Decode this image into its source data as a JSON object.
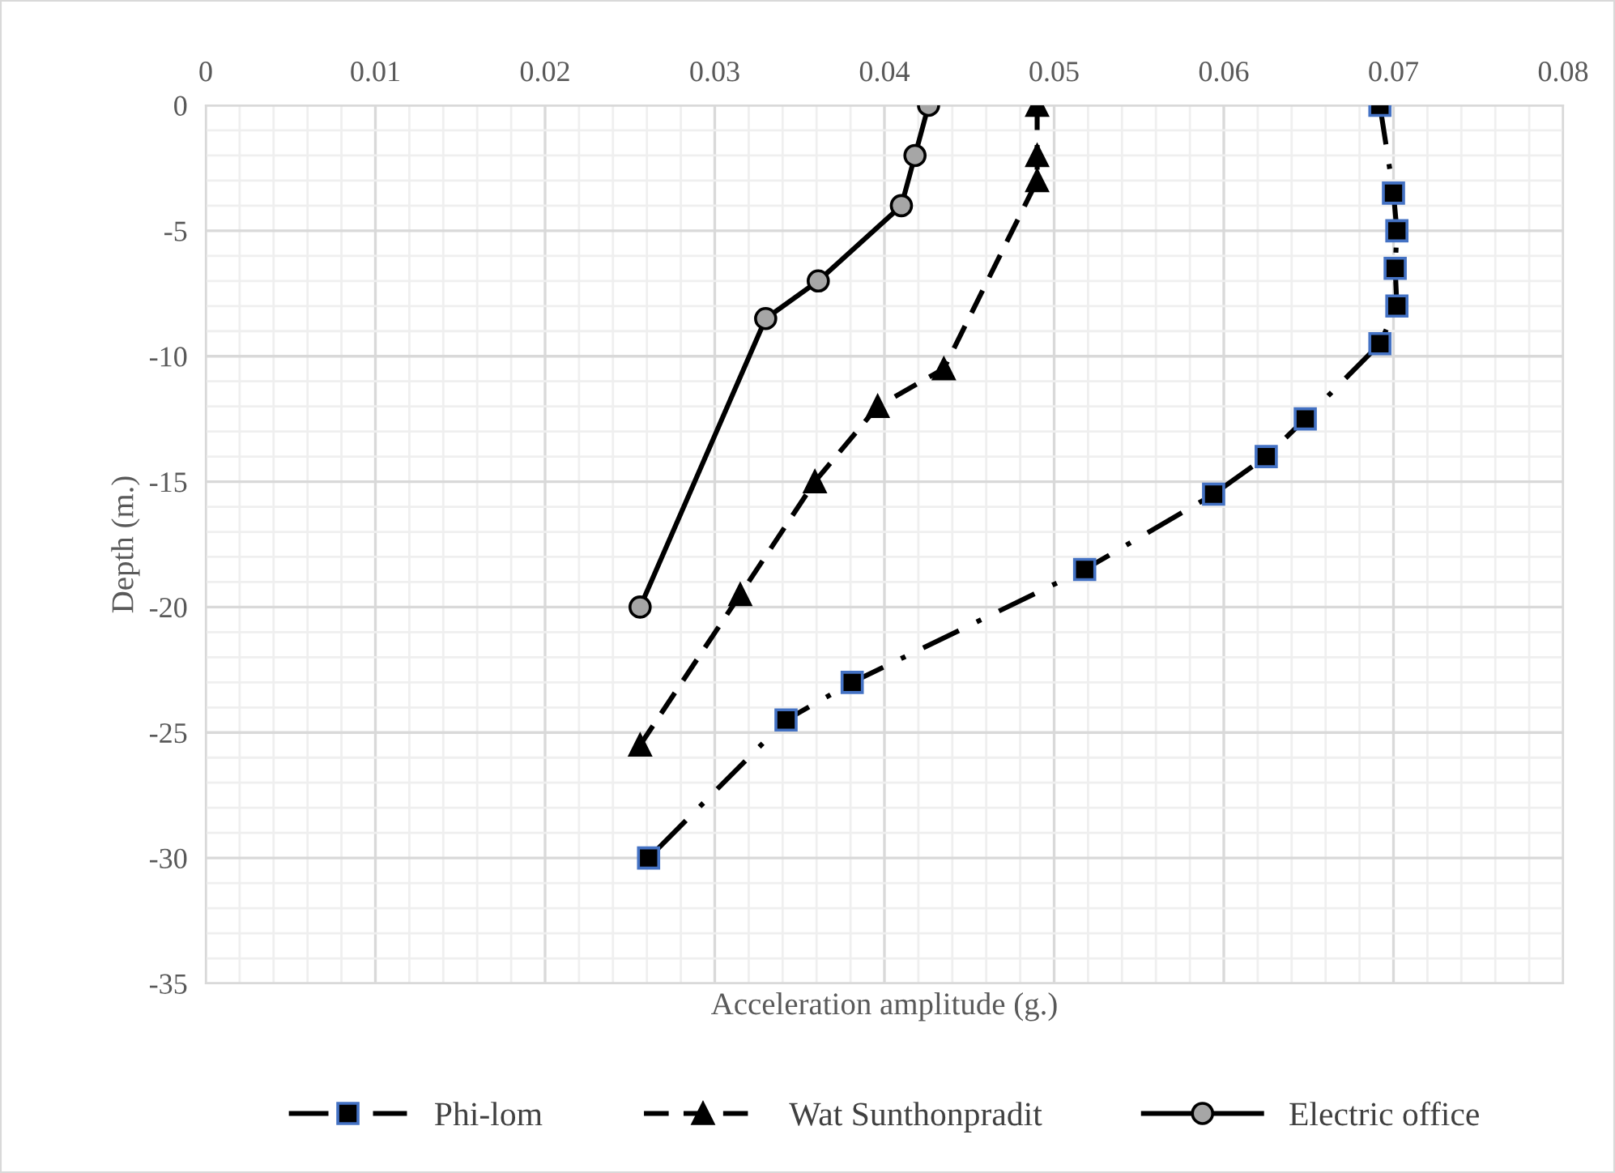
{
  "chart_data": {
    "type": "line",
    "xlabel": "Acceleration amplitude (g.)",
    "ylabel": "Depth (m.)",
    "xlim": [
      0,
      0.08
    ],
    "xticks": [
      0,
      0.01,
      0.02,
      0.03,
      0.04,
      0.05,
      0.06,
      0.07,
      0.08
    ],
    "ylim": [
      -35,
      0
    ],
    "yticks": [
      0,
      -5,
      -10,
      -15,
      -20,
      -25,
      -30,
      -35
    ],
    "grid": true,
    "legend": "bottom",
    "series": [
      {
        "name": "Phi-lom",
        "color": "#000000",
        "marker": "square",
        "line_style": "dashdot",
        "x": [
          0.0692,
          0.07,
          0.0702,
          0.0701,
          0.0702,
          0.0692,
          0.0648,
          0.0625,
          0.0594,
          0.0518,
          0.0381,
          0.0342,
          0.0261
        ],
        "values": [
          0,
          -3.5,
          -5,
          -6.5,
          -8,
          -9.5,
          -12.5,
          -14,
          -15.5,
          -18.5,
          -23,
          -24.5,
          -30
        ]
      },
      {
        "name": "Wat Sunthonpradit",
        "color": "#000000",
        "marker": "triangle",
        "line_style": "dashed",
        "x": [
          0.049,
          0.049,
          0.049,
          0.0435,
          0.0396,
          0.0359,
          0.0315,
          0.0256
        ],
        "values": [
          0,
          -2,
          -3,
          -10.5,
          -12,
          -15,
          -19.5,
          -25.5
        ]
      },
      {
        "name": "Electric office",
        "color": "#000000",
        "marker": "circle",
        "line_style": "solid",
        "x": [
          0.0426,
          0.0418,
          0.041,
          0.0361,
          0.033,
          0.0256
        ],
        "values": [
          0,
          -2,
          -4,
          -7,
          -8.5,
          -20
        ]
      }
    ]
  }
}
